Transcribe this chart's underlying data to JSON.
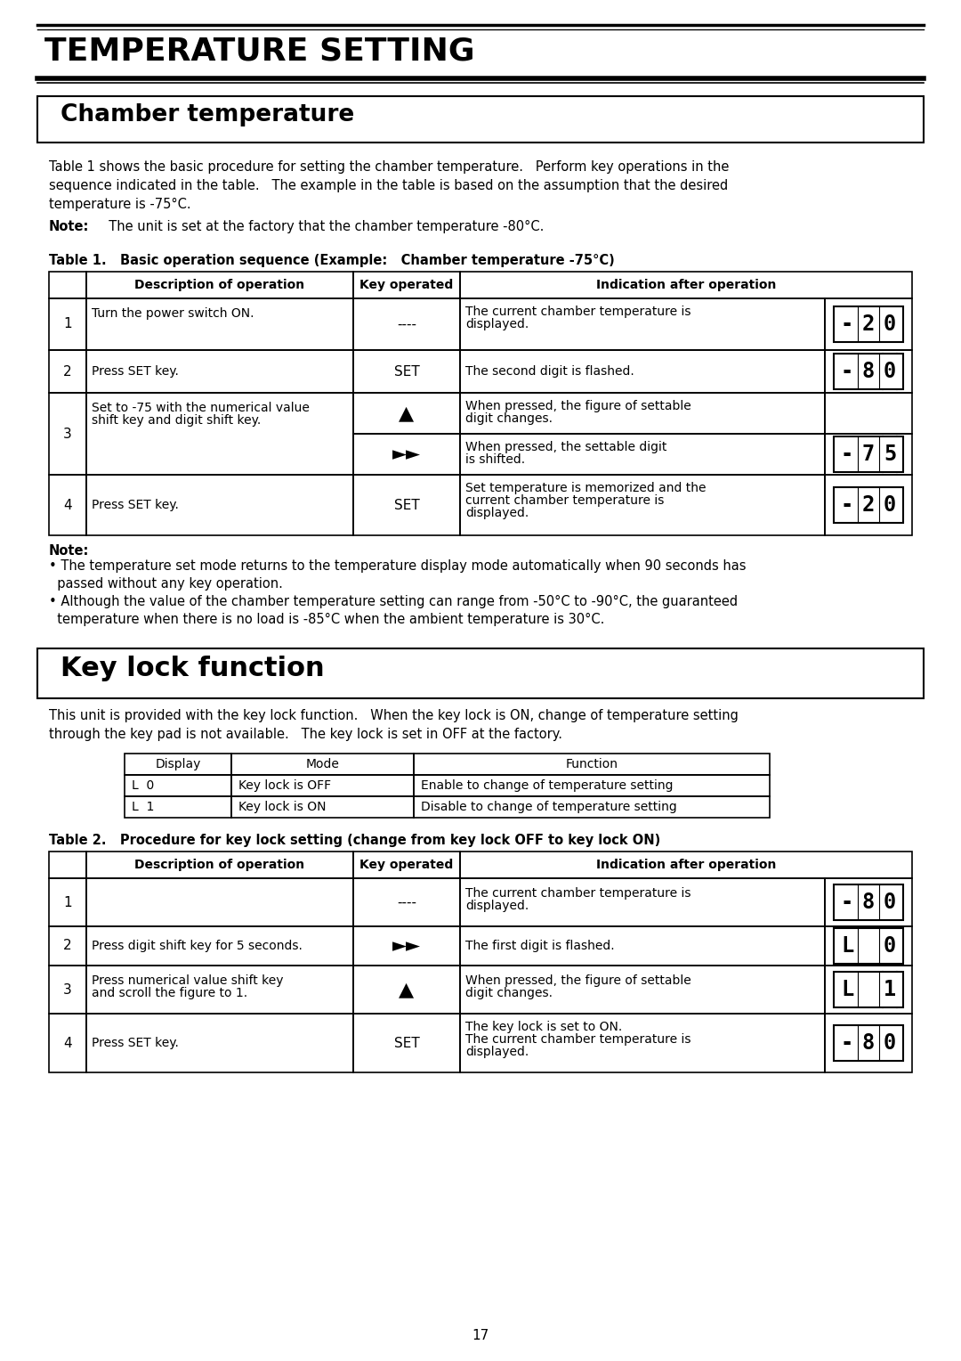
{
  "page_title": "TEMPERATURE SETTING",
  "section1_title": "Chamber temperature",
  "section1_intro_lines": [
    "Table 1 shows the basic procedure for setting the chamber temperature.   Perform key operations in the",
    "sequence indicated in the table.   The example in the table is based on the assumption that the desired",
    "temperature is -75°C."
  ],
  "section1_note": "The unit is set at the factory that the chamber temperature -80°C.",
  "table1_caption": "Table 1.   Basic operation sequence (Example:   Chamber temperature -75°C)",
  "table1_col_headers": [
    "Description of operation",
    "Key operated",
    "Indication after operation"
  ],
  "section1_notes": [
    "• The temperature set mode returns to the temperature display mode automatically when 90 seconds has",
    "  passed without any key operation.",
    "• Although the value of the chamber temperature setting can range from -50°C to -90°C, the guaranteed",
    "  temperature when there is no load is -85°C when the ambient temperature is 30°C."
  ],
  "section2_title": "Key lock function",
  "section2_intro_lines": [
    "This unit is provided with the key lock function.   When the key lock is ON, change of temperature setting",
    "through the key pad is not available.   The key lock is set in OFF at the factory."
  ],
  "keylock_headers": [
    "Display",
    "Mode",
    "Function"
  ],
  "keylock_rows": [
    [
      "L  0",
      "Key lock is OFF",
      "Enable to change of temperature setting"
    ],
    [
      "L  1",
      "Key lock is ON",
      "Disable to change of temperature setting"
    ]
  ],
  "table2_caption": "Table 2.   Procedure for key lock setting (change from key lock OFF to key lock ON)",
  "table2_col_headers": [
    "Description of operation",
    "Key operated",
    "Indication after operation"
  ],
  "page_number": "17"
}
